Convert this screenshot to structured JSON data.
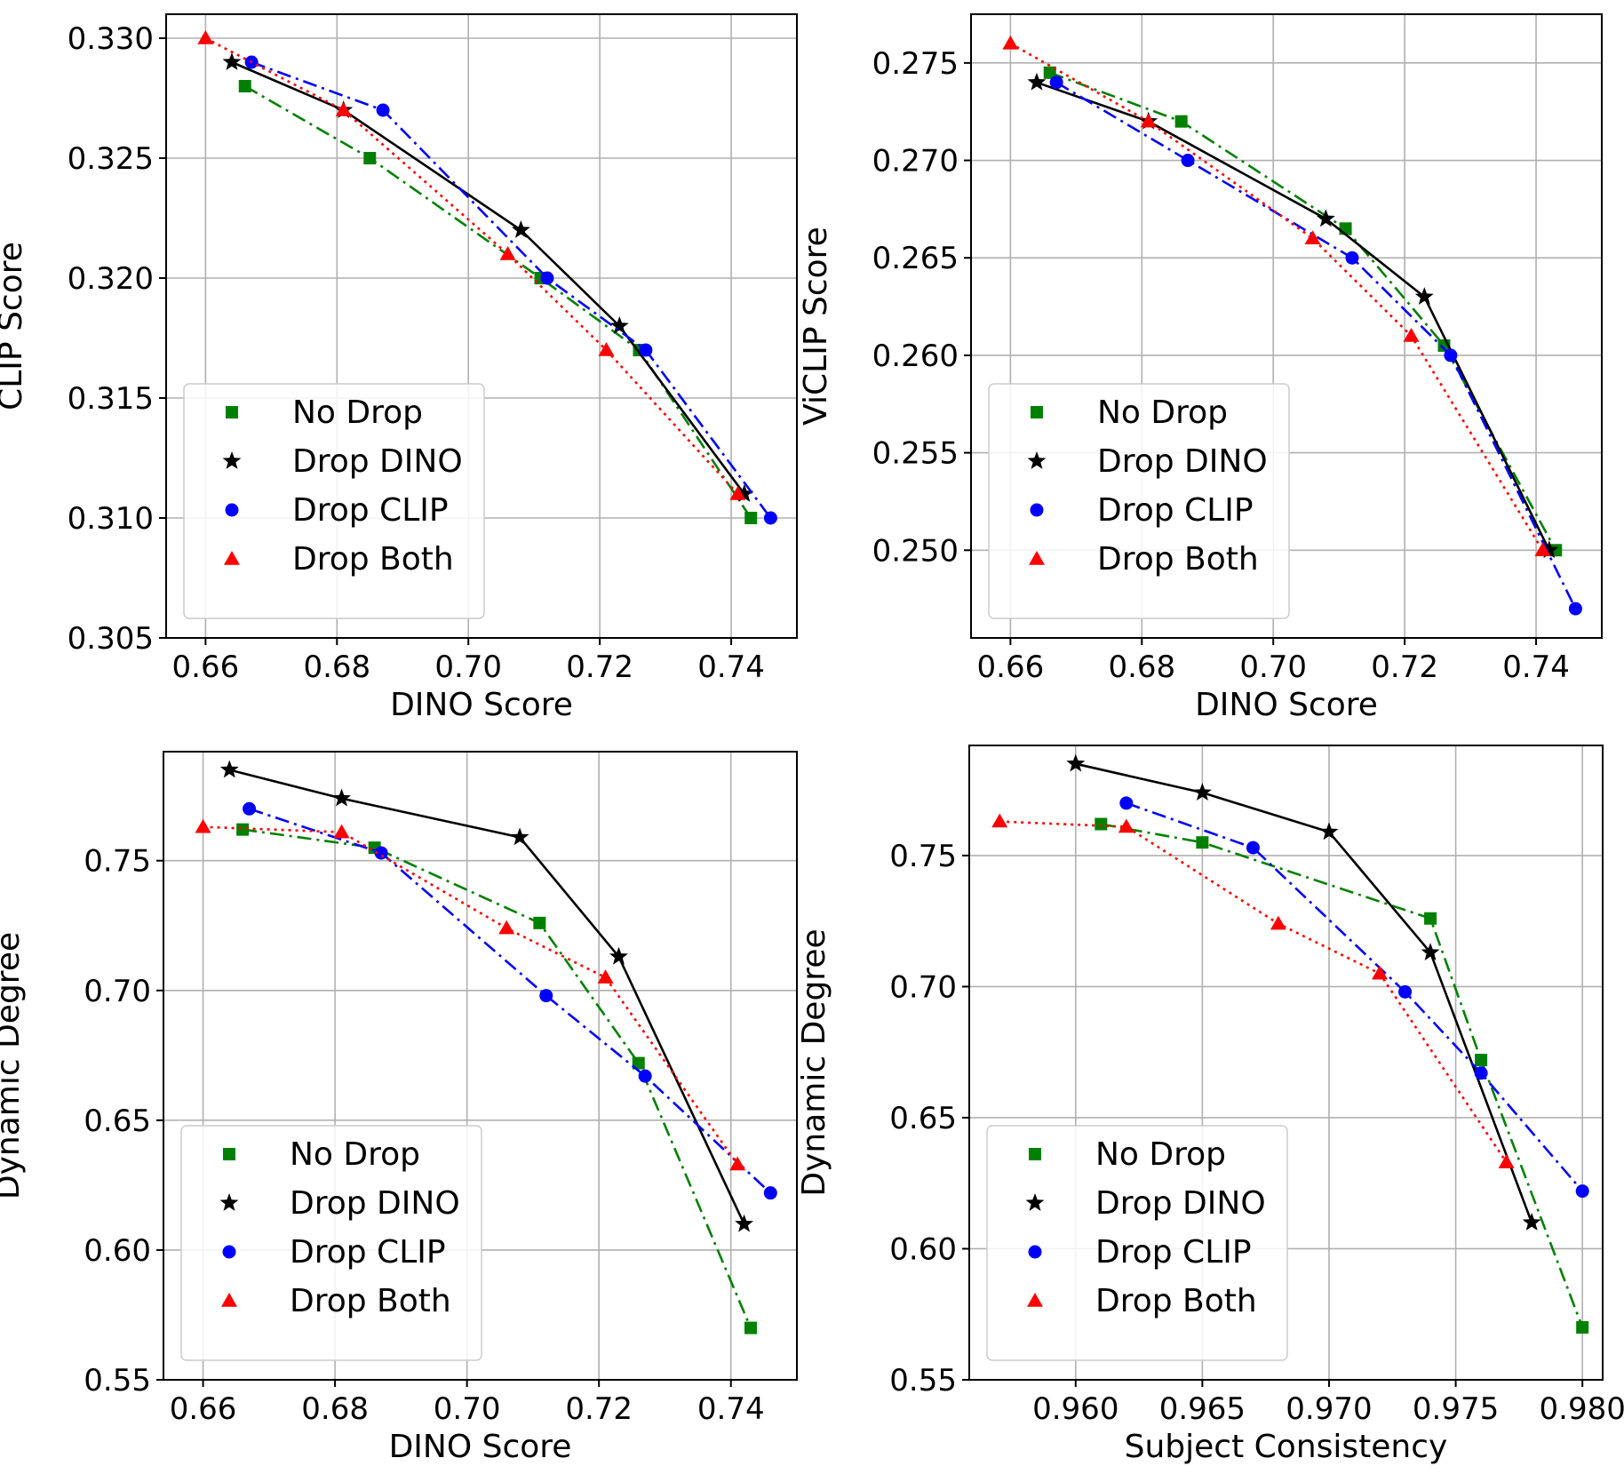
{
  "chart_data": [
    {
      "type": "line",
      "xlabel": "DINO Score",
      "ylabel": "CLIP Score",
      "xlim": [
        0.654,
        0.75
      ],
      "ylim": [
        0.305,
        0.331
      ],
      "xticks": [
        "0.66",
        "0.68",
        "0.70",
        "0.72",
        "0.74"
      ],
      "yticks": [
        "0.305",
        "0.310",
        "0.315",
        "0.320",
        "0.325",
        "0.330"
      ],
      "grid": true,
      "legend_position": "lower-left",
      "series": [
        {
          "name": "No Drop",
          "color": "#008000",
          "marker": "square",
          "line": "dashdot",
          "x": [
            0.666,
            0.685,
            0.711,
            0.726,
            0.743
          ],
          "y": [
            0.328,
            0.325,
            0.32,
            0.317,
            0.31
          ]
        },
        {
          "name": "Drop DINO",
          "color": "#000000",
          "marker": "star",
          "line": "solid",
          "x": [
            0.664,
            0.681,
            0.708,
            0.723,
            0.742
          ],
          "y": [
            0.329,
            0.327,
            0.322,
            0.318,
            0.311
          ]
        },
        {
          "name": "Drop CLIP",
          "color": "#0000ff",
          "marker": "circle",
          "line": "dashdot",
          "x": [
            0.667,
            0.687,
            0.712,
            0.727,
            0.746
          ],
          "y": [
            0.329,
            0.327,
            0.32,
            0.317,
            0.31
          ]
        },
        {
          "name": "Drop Both",
          "color": "#ff0000",
          "marker": "triangle",
          "line": "dotted",
          "x": [
            0.66,
            0.681,
            0.706,
            0.721,
            0.741
          ],
          "y": [
            0.33,
            0.327,
            0.321,
            0.317,
            0.311
          ]
        }
      ]
    },
    {
      "type": "line",
      "xlabel": "DINO Score",
      "ylabel": "ViCLIP Score",
      "xlim": [
        0.654,
        0.75
      ],
      "ylim": [
        0.2455,
        0.2775
      ],
      "xticks": [
        "0.66",
        "0.68",
        "0.70",
        "0.72",
        "0.74"
      ],
      "yticks": [
        "0.250",
        "0.255",
        "0.260",
        "0.265",
        "0.270",
        "0.275"
      ],
      "grid": true,
      "legend_position": "lower-left",
      "series": [
        {
          "name": "No Drop",
          "color": "#008000",
          "marker": "square",
          "line": "dashdot",
          "x": [
            0.666,
            0.686,
            0.711,
            0.726,
            0.743
          ],
          "y": [
            0.2745,
            0.272,
            0.2665,
            0.2605,
            0.25
          ]
        },
        {
          "name": "Drop DINO",
          "color": "#000000",
          "marker": "star",
          "line": "solid",
          "x": [
            0.664,
            0.681,
            0.708,
            0.723,
            0.742
          ],
          "y": [
            0.274,
            0.272,
            0.267,
            0.263,
            0.25
          ]
        },
        {
          "name": "Drop CLIP",
          "color": "#0000ff",
          "marker": "circle",
          "line": "dashdot",
          "x": [
            0.667,
            0.687,
            0.712,
            0.727,
            0.746
          ],
          "y": [
            0.274,
            0.27,
            0.265,
            0.26,
            0.247
          ]
        },
        {
          "name": "Drop Both",
          "color": "#ff0000",
          "marker": "triangle",
          "line": "dotted",
          "x": [
            0.66,
            0.681,
            0.706,
            0.721,
            0.741
          ],
          "y": [
            0.276,
            0.272,
            0.266,
            0.261,
            0.25
          ]
        }
      ]
    },
    {
      "type": "line",
      "xlabel": "DINO Score",
      "ylabel": "Dynamic Degree",
      "xlim": [
        0.654,
        0.75
      ],
      "ylim": [
        0.55,
        0.792
      ],
      "xticks": [
        "0.66",
        "0.68",
        "0.70",
        "0.72",
        "0.74"
      ],
      "yticks": [
        "0.55",
        "0.60",
        "0.65",
        "0.70",
        "0.75"
      ],
      "grid": true,
      "legend_position": "lower-left",
      "series": [
        {
          "name": "No Drop",
          "color": "#008000",
          "marker": "square",
          "line": "dashdot",
          "x": [
            0.666,
            0.686,
            0.711,
            0.726,
            0.743
          ],
          "y": [
            0.762,
            0.755,
            0.726,
            0.672,
            0.57
          ]
        },
        {
          "name": "Drop DINO",
          "color": "#000000",
          "marker": "star",
          "line": "solid",
          "x": [
            0.664,
            0.681,
            0.708,
            0.723,
            0.742
          ],
          "y": [
            0.785,
            0.774,
            0.759,
            0.713,
            0.61
          ]
        },
        {
          "name": "Drop CLIP",
          "color": "#0000ff",
          "marker": "circle",
          "line": "dashdot",
          "x": [
            0.667,
            0.687,
            0.712,
            0.727,
            0.746
          ],
          "y": [
            0.77,
            0.753,
            0.698,
            0.667,
            0.622
          ]
        },
        {
          "name": "Drop Both",
          "color": "#ff0000",
          "marker": "triangle",
          "line": "dotted",
          "x": [
            0.66,
            0.681,
            0.706,
            0.721,
            0.741
          ],
          "y": [
            0.763,
            0.761,
            0.724,
            0.705,
            0.633
          ]
        }
      ]
    },
    {
      "type": "line",
      "xlabel": "Subject Consistency",
      "ylabel": "Dynamic Degree",
      "xlim": [
        0.9558,
        0.9808
      ],
      "ylim": [
        0.55,
        0.792
      ],
      "xticks": [
        "0.960",
        "0.965",
        "0.970",
        "0.975",
        "0.980"
      ],
      "yticks": [
        "0.55",
        "0.60",
        "0.65",
        "0.70",
        "0.75"
      ],
      "grid": true,
      "legend_position": "lower-left",
      "series": [
        {
          "name": "No Drop",
          "color": "#008000",
          "marker": "square",
          "line": "dashdot",
          "x": [
            0.961,
            0.965,
            0.974,
            0.976,
            0.98
          ],
          "y": [
            0.762,
            0.755,
            0.726,
            0.672,
            0.57
          ]
        },
        {
          "name": "Drop DINO",
          "color": "#000000",
          "marker": "star",
          "line": "solid",
          "x": [
            0.96,
            0.965,
            0.97,
            0.974,
            0.978
          ],
          "y": [
            0.785,
            0.774,
            0.759,
            0.713,
            0.61
          ]
        },
        {
          "name": "Drop CLIP",
          "color": "#0000ff",
          "marker": "circle",
          "line": "dashdot",
          "x": [
            0.962,
            0.967,
            0.973,
            0.976,
            0.98
          ],
          "y": [
            0.77,
            0.753,
            0.698,
            0.667,
            0.622
          ]
        },
        {
          "name": "Drop Both",
          "color": "#ff0000",
          "marker": "triangle",
          "line": "dotted",
          "x": [
            0.957,
            0.962,
            0.968,
            0.972,
            0.977
          ],
          "y": [
            0.763,
            0.761,
            0.724,
            0.705,
            0.633
          ]
        }
      ]
    }
  ]
}
